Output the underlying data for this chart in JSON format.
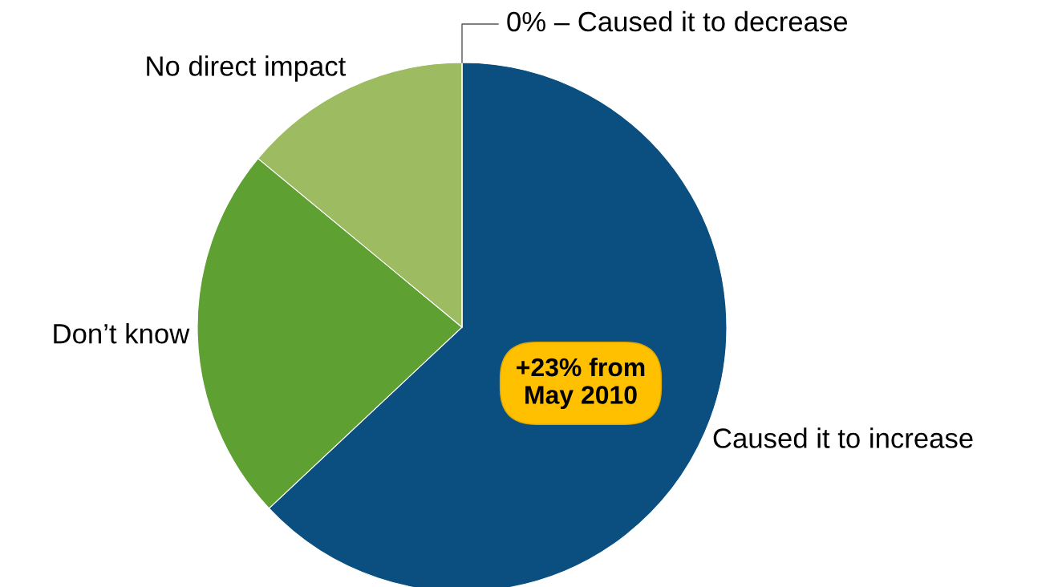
{
  "chart_data": {
    "type": "pie",
    "categories": [
      "Caused it to increase",
      "Don’t know",
      "No direct impact",
      "0% – Caused it to decrease"
    ],
    "values": [
      63,
      23,
      14,
      0
    ],
    "colors": [
      "#0b4f80",
      "#5fa033",
      "#9dbb61",
      "#7a3a7a"
    ],
    "annotations": [
      "+23% from\nMay 2010"
    ],
    "legend": false
  }
}
